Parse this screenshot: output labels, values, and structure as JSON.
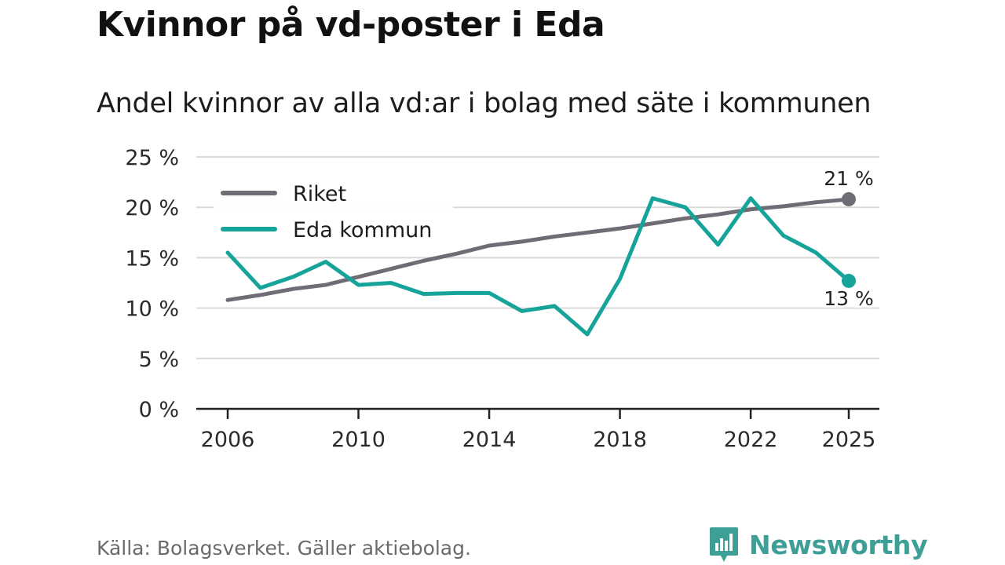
{
  "title": "Kvinnor på vd-poster i Eda",
  "subtitle": "Andel kvinnor av alla vd:ar i bolag med säte i kommunen",
  "source": "Källa: Bolagsverket. Gäller aktiebolag.",
  "brand": "Newsworthy",
  "colors": {
    "riket": "#6e6d75",
    "eda": "#16a399",
    "grid": "#d9d9d9",
    "axis": "#222222",
    "brand": "#3e9f96"
  },
  "chart_data": {
    "type": "line",
    "title": "Kvinnor på vd-poster i Eda",
    "subtitle": "Andel kvinnor av alla vd:ar i bolag med säte i kommunen",
    "xlabel": "",
    "ylabel": "",
    "x": [
      2006,
      2007,
      2008,
      2009,
      2010,
      2011,
      2012,
      2013,
      2014,
      2015,
      2016,
      2017,
      2018,
      2019,
      2020,
      2021,
      2022,
      2023,
      2024,
      2025
    ],
    "xlim": [
      2006,
      2025
    ],
    "ylim": [
      0,
      25
    ],
    "xticks": [
      2006,
      2010,
      2014,
      2018,
      2022,
      2025
    ],
    "xtick_labels": [
      "2006",
      "2010",
      "2014",
      "2018",
      "2022",
      "2025"
    ],
    "yticks": [
      0,
      5,
      10,
      15,
      20,
      25
    ],
    "ytick_labels": [
      "0 %",
      "5 %",
      "10 %",
      "15 %",
      "20 %",
      "25 %"
    ],
    "grid": true,
    "legend_position": "top-left",
    "series": [
      {
        "name": "Riket",
        "color_key": "riket",
        "values": [
          10.8,
          11.3,
          11.9,
          12.3,
          13.1,
          13.9,
          14.7,
          15.4,
          16.2,
          16.6,
          17.1,
          17.5,
          17.9,
          18.4,
          18.9,
          19.3,
          19.8,
          20.1,
          20.5,
          20.8
        ],
        "end_label": "21 %"
      },
      {
        "name": "Eda kommun",
        "color_key": "eda",
        "values": [
          15.5,
          12.0,
          13.1,
          14.6,
          12.3,
          12.5,
          11.4,
          11.5,
          11.5,
          9.7,
          10.2,
          7.4,
          12.9,
          20.9,
          20.0,
          16.3,
          20.9,
          17.2,
          15.5,
          12.7
        ],
        "end_label": "13 %"
      }
    ]
  }
}
